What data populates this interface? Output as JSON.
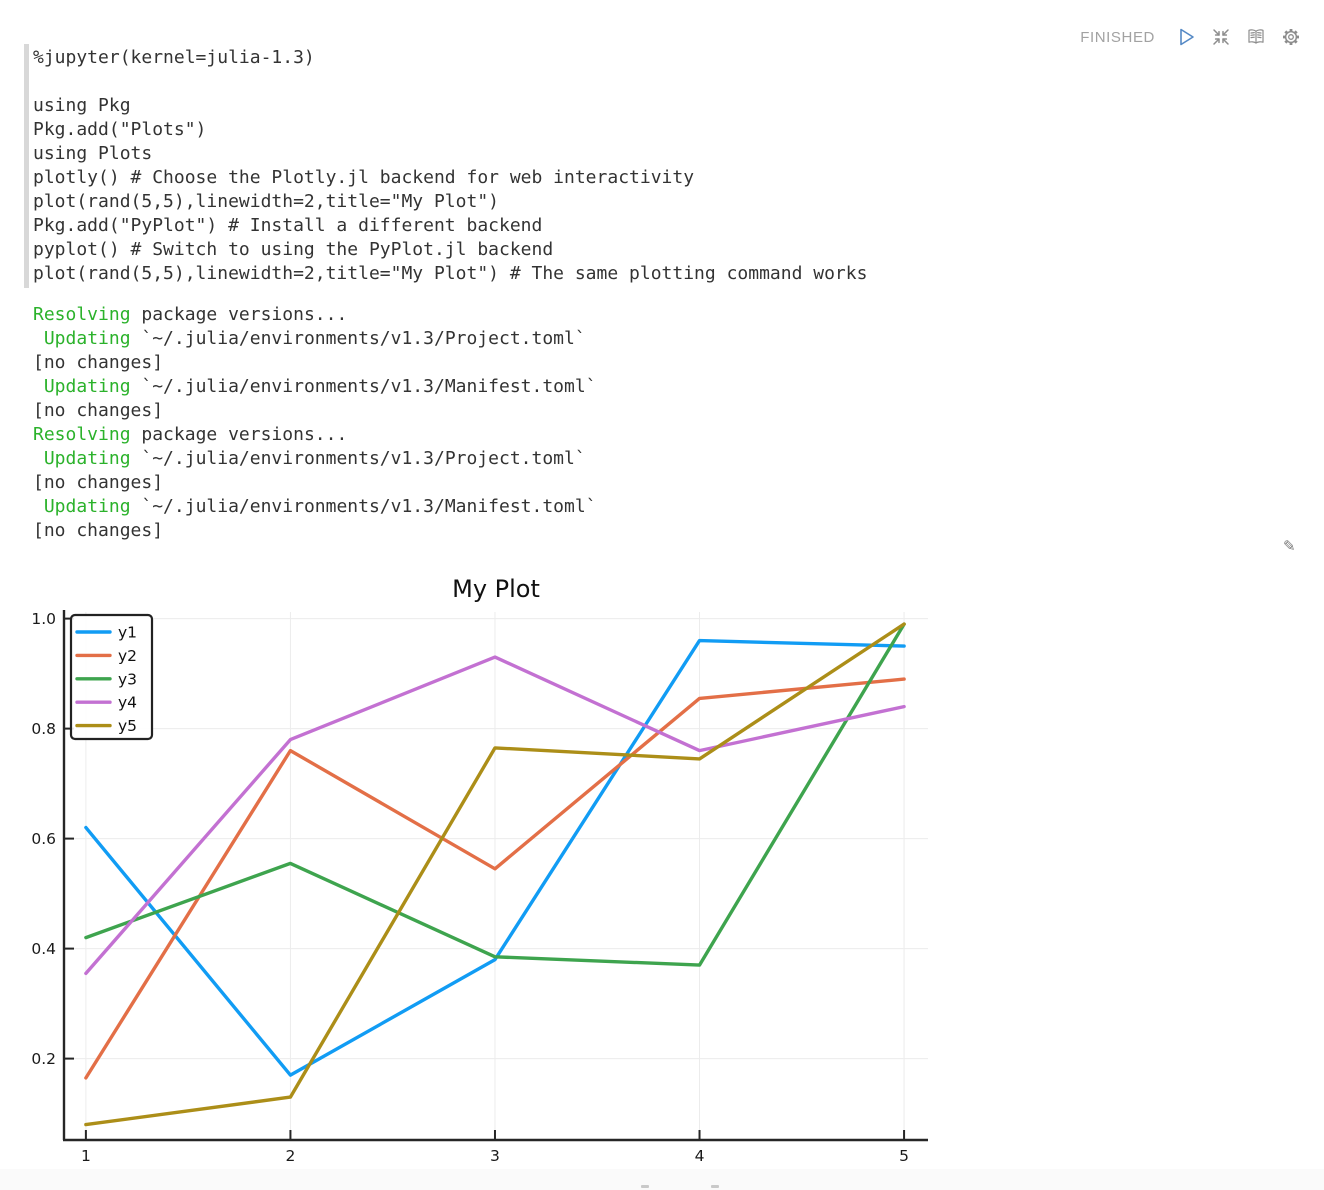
{
  "paragraph": {
    "status": "FINISHED",
    "icons": {
      "edit_glyph": "✎"
    },
    "code": {
      "lines": [
        "%jupyter(kernel=julia-1.3)",
        "",
        "using Pkg",
        "Pkg.add(\"Plots\")",
        "using Plots",
        "plotly() # Choose the Plotly.jl backend for web interactivity",
        "plot(rand(5,5),linewidth=2,title=\"My Plot\")",
        "Pkg.add(\"PyPlot\") # Install a different backend",
        "pyplot() # Switch to using the PyPlot.jl backend",
        "plot(rand(5,5),linewidth=2,title=\"My Plot\") # The same plotting command works"
      ]
    },
    "output": {
      "lines": [
        [
          {
            "t": "Resolving",
            "c": "green"
          },
          {
            "t": " package versions...",
            "c": ""
          }
        ],
        [
          {
            "t": " ",
            "c": ""
          },
          {
            "t": "Updating",
            "c": "green"
          },
          {
            "t": " `~/.julia/environments/v1.3/Project.toml`",
            "c": ""
          }
        ],
        [
          {
            "t": "[no changes]",
            "c": ""
          }
        ],
        [
          {
            "t": " ",
            "c": ""
          },
          {
            "t": "Updating",
            "c": "green"
          },
          {
            "t": " `~/.julia/environments/v1.3/Manifest.toml`",
            "c": ""
          }
        ],
        [
          {
            "t": "[no changes]",
            "c": ""
          }
        ],
        [
          {
            "t": "Resolving",
            "c": "green"
          },
          {
            "t": " package versions...",
            "c": ""
          }
        ],
        [
          {
            "t": " ",
            "c": ""
          },
          {
            "t": "Updating",
            "c": "green"
          },
          {
            "t": " `~/.julia/environments/v1.3/Project.toml`",
            "c": ""
          }
        ],
        [
          {
            "t": "[no changes]",
            "c": ""
          }
        ],
        [
          {
            "t": " ",
            "c": ""
          },
          {
            "t": "Updating",
            "c": "green"
          },
          {
            "t": " `~/.julia/environments/v1.3/Manifest.toml`",
            "c": ""
          }
        ],
        [
          {
            "t": "[no changes]",
            "c": ""
          }
        ]
      ]
    }
  },
  "chart_data": {
    "type": "line",
    "title": "My Plot",
    "x": [
      1,
      2,
      3,
      4,
      5
    ],
    "series": [
      {
        "name": "y1",
        "color": "#119CF4",
        "values": [
          0.62,
          0.17,
          0.38,
          0.96,
          0.95
        ]
      },
      {
        "name": "y2",
        "color": "#E36F47",
        "values": [
          0.165,
          0.76,
          0.545,
          0.855,
          0.89
        ]
      },
      {
        "name": "y3",
        "color": "#3EA44E",
        "values": [
          0.42,
          0.555,
          0.385,
          0.37,
          0.99
        ]
      },
      {
        "name": "y4",
        "color": "#C371D2",
        "values": [
          0.355,
          0.78,
          0.93,
          0.76,
          0.84
        ]
      },
      {
        "name": "y5",
        "color": "#AC8E18",
        "values": [
          0.08,
          0.13,
          0.765,
          0.745,
          0.99
        ]
      }
    ],
    "xticks": [
      1,
      2,
      3,
      4,
      5
    ],
    "yticks": [
      0.2,
      0.4,
      0.6,
      0.8,
      1.0
    ],
    "xlim": [
      0.893,
      5.117
    ],
    "ylim": [
      0.052,
      1.012
    ],
    "grid": true,
    "legend_position": "top-left",
    "legend_entries": [
      "y1",
      "y2",
      "y3",
      "y4",
      "y5"
    ]
  },
  "colors": {
    "status_text": "#a2a2a2",
    "play_icon": "#5589C5",
    "gray_icon": "#8d8d8d",
    "terminal_green": "#2bb22b",
    "code_text": "#333333",
    "grid_line": "#ececec",
    "axis_spine": "#262626"
  }
}
